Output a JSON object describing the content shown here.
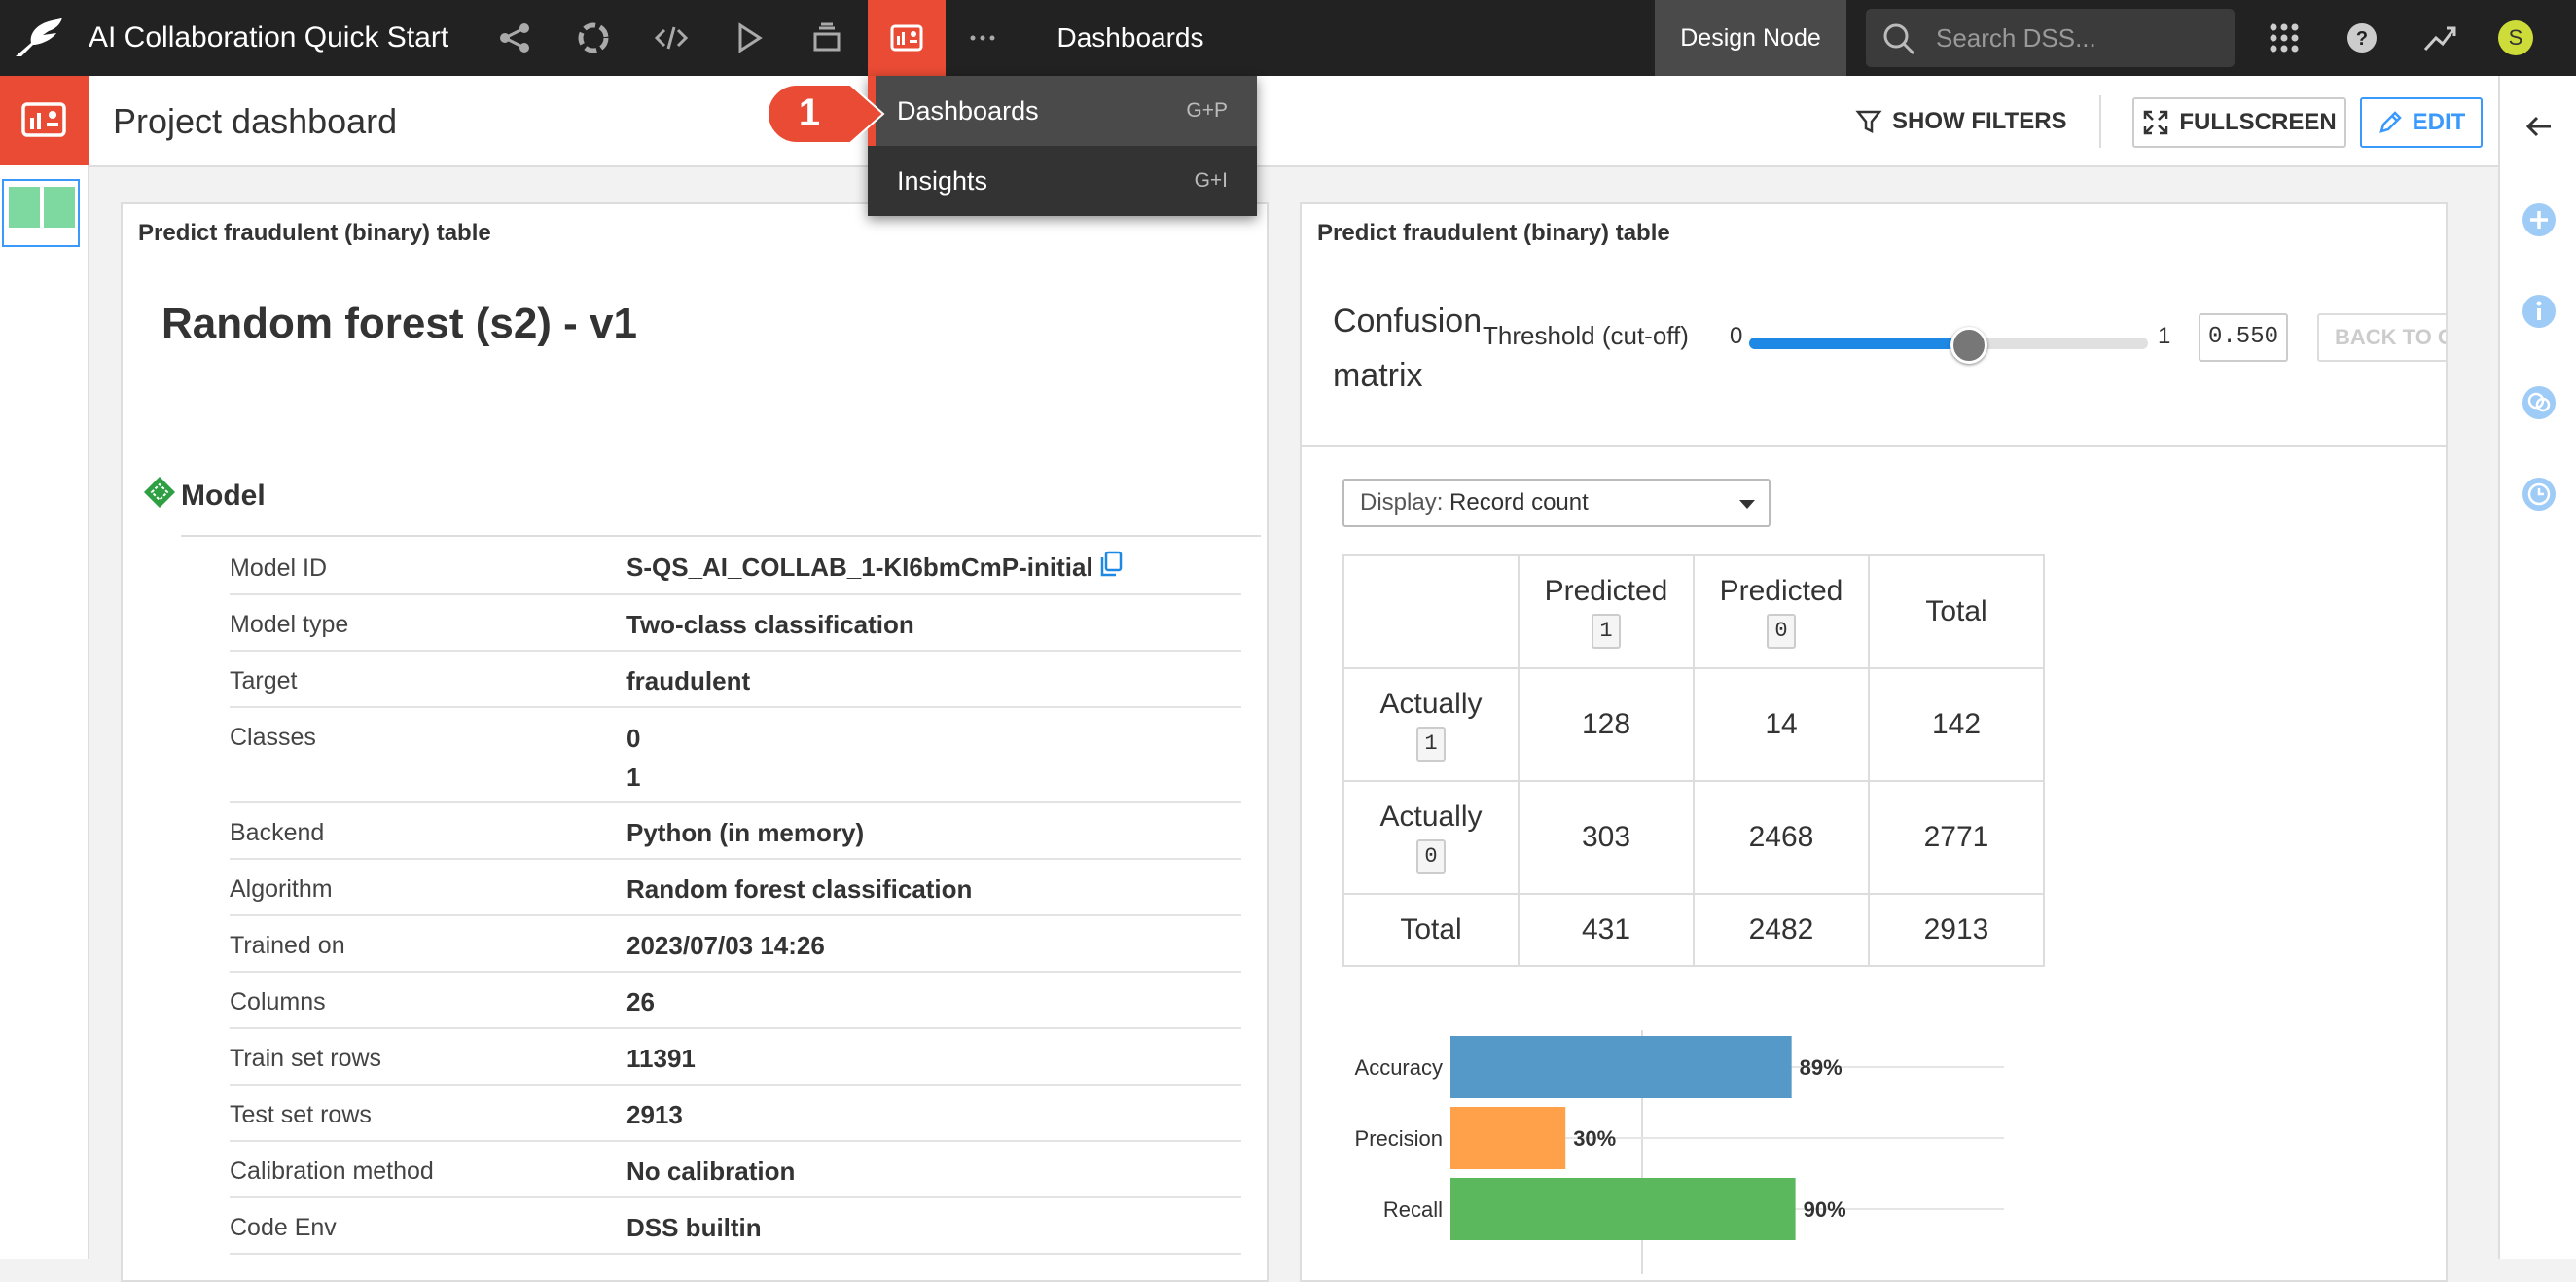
{
  "app": {
    "project_title": "AI Collaboration Quick Start",
    "current_section": "Dashboards",
    "node_label": "Design Node",
    "search_placeholder": "Search DSS...",
    "user_initial": "S",
    "accent_color": "#ea4b34"
  },
  "nav_icons": [
    "flow-icon",
    "lab-icon",
    "code-icon",
    "run-icon",
    "deploy-icon",
    "dashboard-icon",
    "more-icon"
  ],
  "menu": {
    "items": [
      {
        "label": "Dashboards",
        "shortcut": "G+P"
      },
      {
        "label": "Insights",
        "shortcut": "G+I"
      }
    ],
    "callout_number": "1"
  },
  "header": {
    "page_title": "Project dashboard",
    "show_filters": "SHOW FILTERS",
    "fullscreen": "FULLSCREEN",
    "edit": "EDIT"
  },
  "left_tile": {
    "title": "Predict fraudulent (binary) table",
    "model_name": "Random forest (s2) - v1",
    "section_title": "Model",
    "rows": [
      {
        "key": "Model ID",
        "value": "S-QS_AI_COLLAB_1-KI6bmCmP-initial"
      },
      {
        "key": "Model type",
        "value": "Two-class classification"
      },
      {
        "key": "Target",
        "value": "fraudulent"
      },
      {
        "key": "Classes",
        "value": "0",
        "value2": "1"
      },
      {
        "key": "Backend",
        "value": "Python (in memory)"
      },
      {
        "key": "Algorithm",
        "value": "Random forest classification"
      },
      {
        "key": "Trained on",
        "value": "2023/07/03 14:26"
      },
      {
        "key": "Columns",
        "value": "26"
      },
      {
        "key": "Train set rows",
        "value": "11391"
      },
      {
        "key": "Test set rows",
        "value": "2913"
      },
      {
        "key": "Calibration method",
        "value": "No calibration"
      },
      {
        "key": "Code Env",
        "value": "DSS builtin"
      }
    ]
  },
  "right_tile": {
    "title": "Predict fraudulent (binary) table",
    "cm_title": "Confusion matrix",
    "threshold_label": "Threshold (cut-off)",
    "threshold_min": "0",
    "threshold_max": "1",
    "threshold_value": "0.550",
    "threshold": 0.55,
    "back_button": "BACK TO OPTIMAL",
    "display_label": "Display:",
    "display_value": "Record count",
    "matrix": {
      "col_headers": [
        {
          "label": "Predicted",
          "class": "1"
        },
        {
          "label": "Predicted",
          "class": "0"
        },
        {
          "label": "Total"
        }
      ],
      "rows": [
        {
          "label": "Actually",
          "class": "1",
          "cells": [
            "128",
            "14",
            "142"
          ]
        },
        {
          "label": "Actually",
          "class": "0",
          "cells": [
            "303",
            "2468",
            "2771"
          ]
        },
        {
          "label": "Total",
          "cells": [
            "431",
            "2482",
            "2913"
          ]
        }
      ]
    }
  },
  "chart_data": {
    "type": "bar",
    "orientation": "horizontal",
    "categories": [
      "Accuracy",
      "Precision",
      "Recall"
    ],
    "values": [
      89,
      30,
      90
    ],
    "value_labels": [
      "89%",
      "30%",
      "90%"
    ],
    "colors": [
      "#5499c7",
      "#ffa04a",
      "#5cb85c"
    ],
    "unit": "%",
    "xlim": [
      0,
      100
    ],
    "title": "",
    "xlabel": "",
    "ylabel": ""
  }
}
